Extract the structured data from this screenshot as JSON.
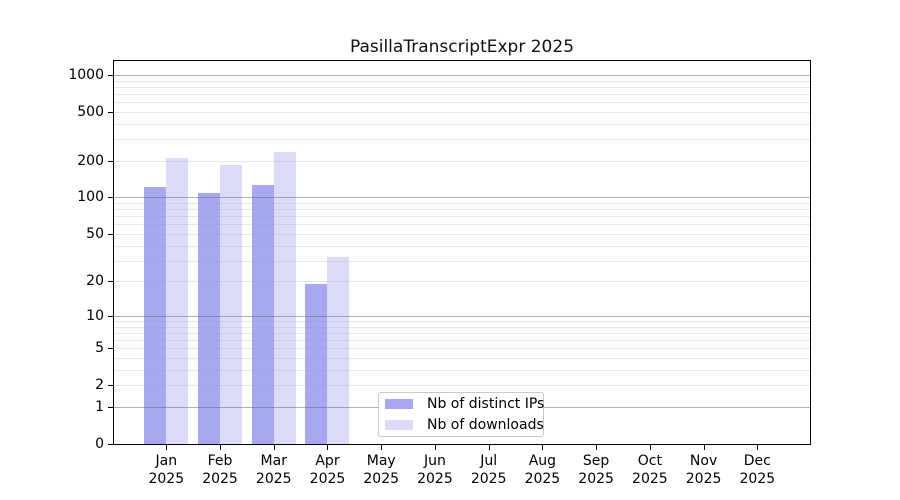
{
  "title": "PasillaTranscriptExpr 2025",
  "chart_data": {
    "type": "bar",
    "title": "PasillaTranscriptExpr 2025",
    "categories": [
      "Jan 2025",
      "Feb 2025",
      "Mar 2025",
      "Apr 2025",
      "May 2025",
      "Jun 2025",
      "Jul 2025",
      "Aug 2025",
      "Sep 2025",
      "Oct 2025",
      "Nov 2025",
      "Dec 2025"
    ],
    "series": [
      {
        "name": "Nb of distinct IPs",
        "color": "#a8a8f2",
        "values": [
          123,
          109,
          127,
          19,
          null,
          null,
          null,
          null,
          null,
          null,
          null,
          null
        ]
      },
      {
        "name": "Nb of downloads",
        "color": "#dcdcf8",
        "values": [
          210,
          185,
          237,
          32,
          null,
          null,
          null,
          null,
          null,
          null,
          null,
          null
        ]
      }
    ],
    "xlabel": "",
    "ylabel": "",
    "yscale": "log10(1+x)",
    "ylim": [
      0,
      1350
    ],
    "yticks": [
      0,
      1,
      2,
      5,
      10,
      20,
      50,
      100,
      200,
      500,
      1000
    ],
    "major_gridlines": [
      1,
      10,
      100,
      1000
    ],
    "minor_gridlines": [
      2,
      3,
      4,
      5,
      6,
      7,
      8,
      9,
      20,
      30,
      40,
      50,
      60,
      70,
      80,
      90,
      200,
      300,
      400,
      500,
      600,
      700,
      800,
      900
    ],
    "grid": true,
    "legend_position": "lower center inside",
    "colors": {
      "background": "#ffffff",
      "axis": "#000000",
      "grid_major": "#b1b1b1",
      "grid_minor": "#e5e5e5"
    }
  }
}
